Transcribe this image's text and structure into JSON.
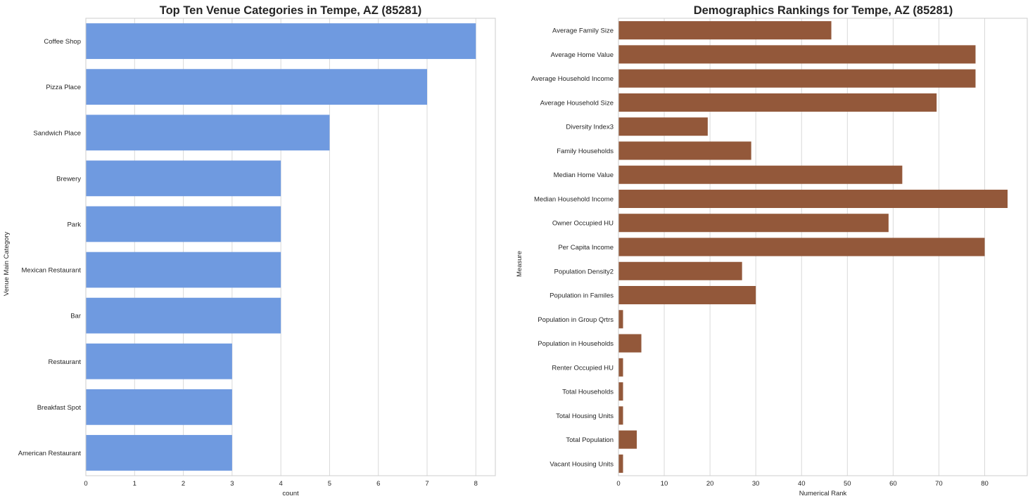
{
  "chart_data": [
    {
      "type": "bar",
      "orientation": "horizontal",
      "title": "Top Ten Venue Categories in Tempe, AZ (85281)",
      "xlabel": "count",
      "ylabel": "Venue Main Category",
      "categories": [
        "Coffee Shop",
        "Pizza Place",
        "Sandwich Place",
        "Brewery",
        "Park",
        "Mexican Restaurant",
        "Bar",
        "Restaurant",
        "Breakfast Spot",
        "American Restaurant"
      ],
      "values": [
        8,
        7,
        5,
        4,
        4,
        4,
        4,
        3,
        3,
        3
      ],
      "xlim": [
        0,
        8.4
      ],
      "xticks": [
        0,
        1,
        2,
        3,
        4,
        5,
        6,
        7,
        8
      ],
      "grid": "vertical",
      "bar_color": "#6f9ae0"
    },
    {
      "type": "bar",
      "orientation": "horizontal",
      "title": "Demographics Rankings for Tempe, AZ (85281)",
      "xlabel": "Numerical Rank",
      "ylabel": "Measure",
      "categories": [
        "Average Family Size",
        "Average Home Value",
        "Average Household Income",
        "Average Household Size",
        "Diversity Index3",
        "Family Households",
        "Median Home Value",
        "Median Household Income",
        "Owner Occupied HU",
        "Per Capita Income",
        "Population Density2",
        "Population in Familes",
        "Population in Group Qrtrs",
        "Population in Households",
        "Renter Occupied HU",
        "Total Households",
        "Total Housing Units",
        "Total Population",
        "Vacant Housing Units"
      ],
      "values": [
        46.5,
        78,
        78,
        69.5,
        19.5,
        29,
        62,
        85,
        59,
        80,
        27,
        30,
        1,
        5,
        1,
        1,
        1,
        4,
        1
      ],
      "xlim": [
        0,
        89.3
      ],
      "xticks": [
        0,
        10,
        20,
        30,
        40,
        50,
        60,
        70,
        80
      ],
      "grid": "vertical",
      "bar_color": "#93583a"
    }
  ]
}
